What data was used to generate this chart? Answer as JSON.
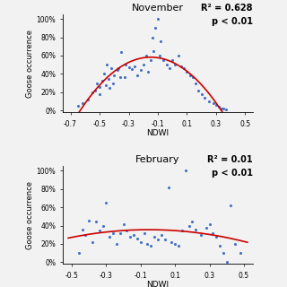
{
  "nov_title": "November",
  "feb_title": "February",
  "nov_r2": "R² = 0.628",
  "nov_p": "p < 0.01",
  "feb_r2": "R² = 0.01",
  "feb_p": "p < 0.01",
  "ylabel": "Goose occurrence",
  "xlabel": "NDWI",
  "background": "#f0f0f0",
  "dot_color": "#4472c4",
  "line_color": "#cc0000",
  "nov_xlim": [
    -0.75,
    0.55
  ],
  "nov_xticks": [
    -0.7,
    -0.5,
    -0.3,
    -0.1,
    0.1,
    0.3,
    0.5
  ],
  "nov_ylim": [
    -2,
    105
  ],
  "nov_yticks": [
    0,
    20,
    40,
    60,
    80,
    100
  ],
  "feb_xlim": [
    -0.55,
    0.55
  ],
  "feb_xticks": [
    -0.5,
    -0.3,
    -0.1,
    0.1,
    0.3,
    0.5
  ],
  "feb_ylim": [
    -2,
    105
  ],
  "feb_yticks": [
    0,
    20,
    40,
    60,
    80,
    100
  ],
  "nov_scatter_x": [
    -0.65,
    -0.62,
    -0.58,
    -0.55,
    -0.53,
    -0.52,
    -0.5,
    -0.5,
    -0.48,
    -0.47,
    -0.46,
    -0.45,
    -0.44,
    -0.43,
    -0.42,
    -0.41,
    -0.4,
    -0.38,
    -0.37,
    -0.36,
    -0.35,
    -0.33,
    -0.32,
    -0.3,
    -0.28,
    -0.26,
    -0.24,
    -0.22,
    -0.2,
    -0.18,
    -0.17,
    -0.15,
    -0.14,
    -0.13,
    -0.12,
    -0.1,
    -0.09,
    -0.08,
    -0.06,
    -0.04,
    -0.02,
    0.0,
    0.02,
    0.04,
    0.06,
    0.08,
    0.1,
    0.12,
    0.14,
    0.16,
    0.18,
    0.2,
    0.22,
    0.25,
    0.28,
    0.3,
    0.32,
    0.34,
    0.35,
    0.37
  ],
  "nov_scatter_y": [
    5,
    8,
    12,
    20,
    22,
    30,
    18,
    26,
    32,
    40,
    28,
    50,
    34,
    25,
    46,
    30,
    38,
    44,
    46,
    36,
    64,
    36,
    50,
    47,
    45,
    48,
    38,
    44,
    50,
    60,
    42,
    55,
    80,
    65,
    90,
    100,
    60,
    76,
    55,
    50,
    46,
    55,
    50,
    60,
    48,
    46,
    42,
    38,
    36,
    30,
    22,
    18,
    14,
    10,
    8,
    6,
    4,
    2,
    2,
    1
  ],
  "feb_scatter_x": [
    -0.46,
    -0.44,
    -0.42,
    -0.4,
    -0.38,
    -0.36,
    -0.34,
    -0.32,
    -0.3,
    -0.28,
    -0.26,
    -0.24,
    -0.22,
    -0.2,
    -0.18,
    -0.16,
    -0.14,
    -0.12,
    -0.1,
    -0.08,
    -0.06,
    -0.04,
    -0.02,
    0.0,
    0.02,
    0.04,
    0.06,
    0.08,
    0.1,
    0.12,
    0.14,
    0.16,
    0.18,
    0.2,
    0.22,
    0.25,
    0.28,
    0.3,
    0.32,
    0.34,
    0.36,
    0.38,
    0.4,
    0.42,
    0.45,
    0.48
  ],
  "feb_scatter_y": [
    10,
    36,
    30,
    45,
    22,
    44,
    35,
    40,
    65,
    28,
    32,
    20,
    32,
    42,
    35,
    28,
    30,
    26,
    22,
    32,
    20,
    18,
    28,
    25,
    30,
    25,
    82,
    22,
    20,
    18,
    35,
    100,
    40,
    44,
    36,
    30,
    38,
    42,
    32,
    28,
    18,
    10,
    0,
    62,
    20,
    10
  ]
}
